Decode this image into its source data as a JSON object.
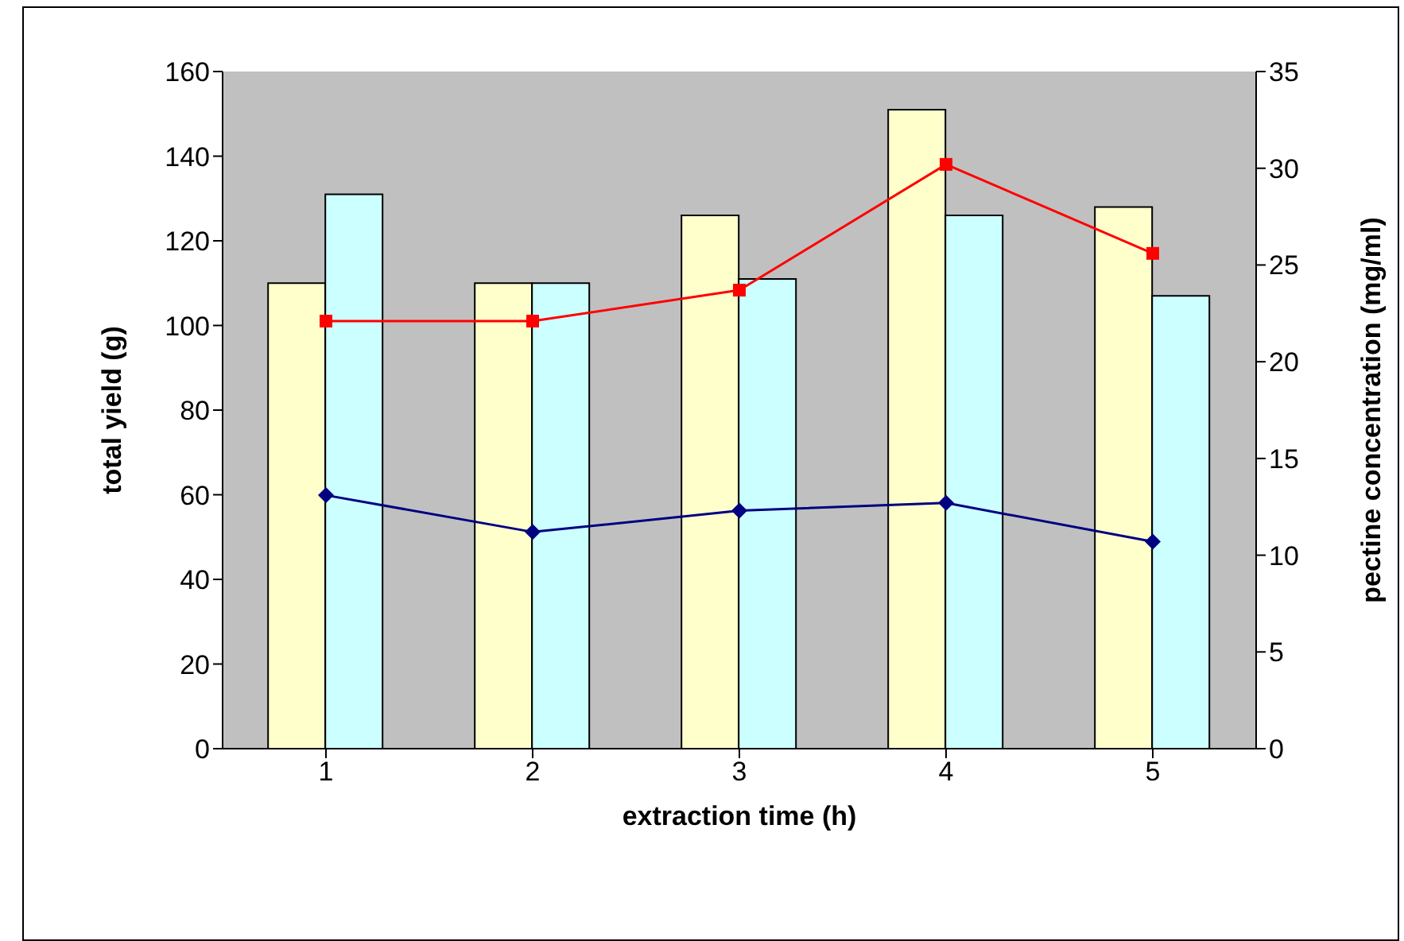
{
  "chart_data": {
    "type": "bar",
    "xlabel": "extraction time (h)",
    "ylabel": "total yield (g)",
    "y2label": "pectine concentration (mg/ml)",
    "categories": [
      "1",
      "2",
      "3",
      "4",
      "5"
    ],
    "series": [
      {
        "color": "#ffffcc",
        "values": [
          110,
          110,
          126,
          151,
          128
        ]
      },
      {
        "color": "#ccffff",
        "values": [
          131,
          110,
          111,
          126,
          107
        ]
      },
      {
        "type": "line",
        "axis": "y2",
        "color": "#ff0000",
        "marker": "square",
        "values": [
          22.1,
          22.1,
          23.7,
          30.2,
          25.6
        ]
      },
      {
        "type": "line",
        "axis": "y2",
        "color": "#000080",
        "marker": "diamond",
        "values": [
          13.1,
          11.2,
          12.3,
          12.7,
          10.7
        ]
      }
    ],
    "ylim": [
      0,
      160
    ],
    "yticks": [
      0,
      20,
      40,
      60,
      80,
      100,
      120,
      140,
      160
    ],
    "y2lim": [
      0,
      35
    ],
    "y2ticks": [
      0,
      5,
      10,
      15,
      20,
      25,
      30,
      35
    ],
    "grid": false,
    "legend": false
  }
}
